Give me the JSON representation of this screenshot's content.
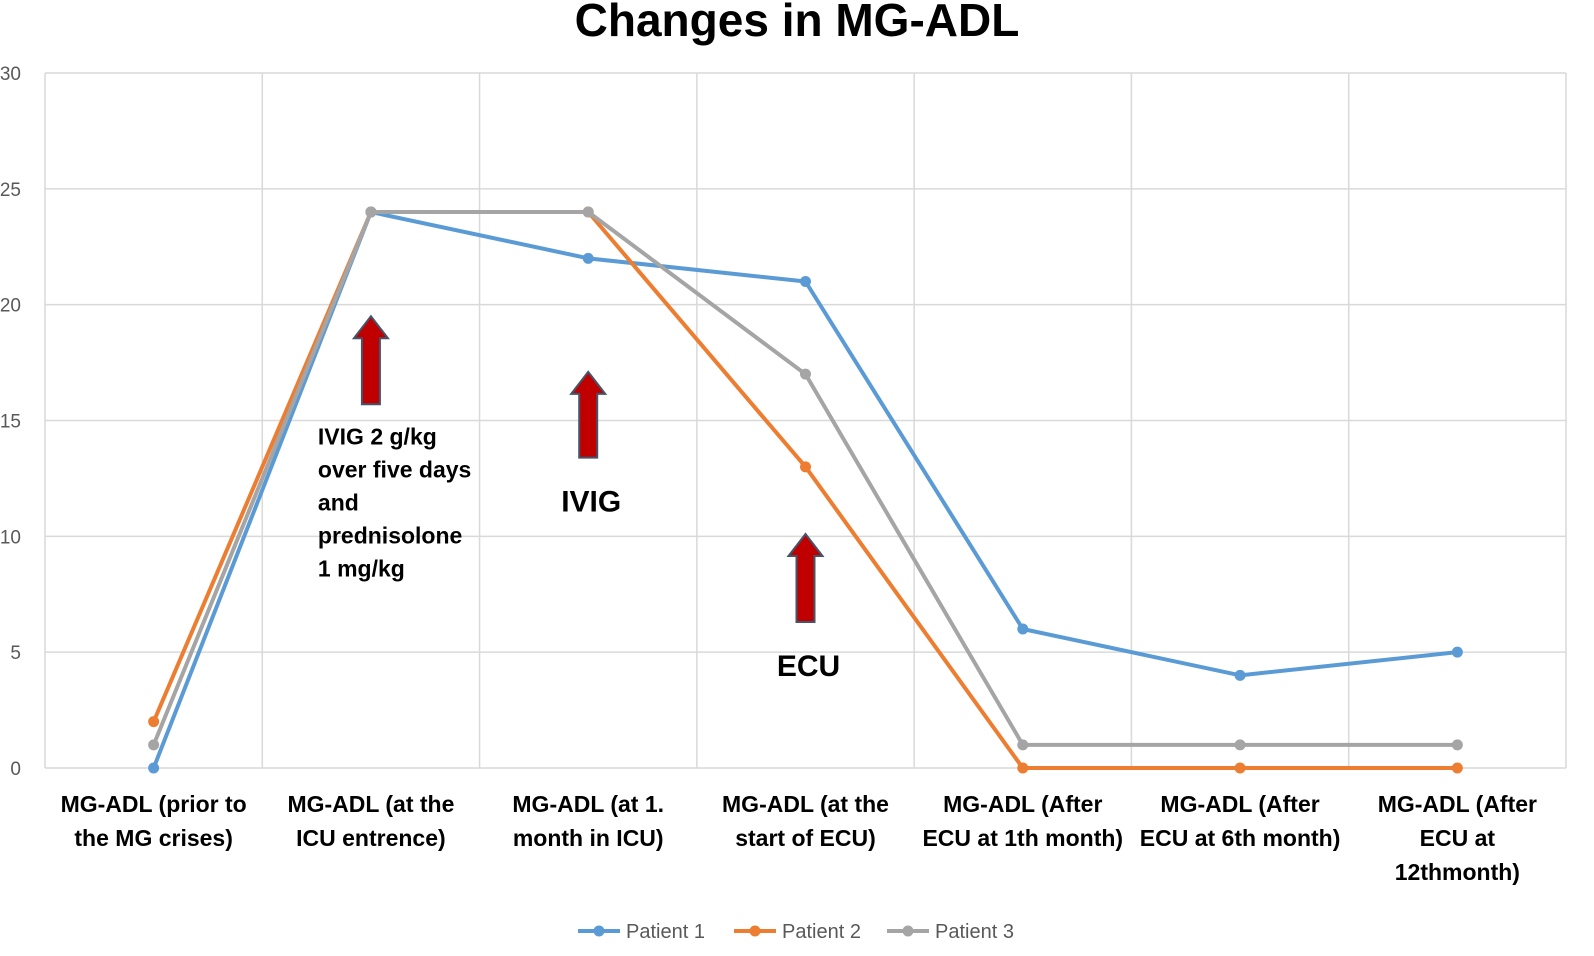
{
  "chart_data": {
    "type": "line",
    "title": "Changes in MG-ADL",
    "xlabel": "",
    "ylabel": "",
    "ylim": [
      0,
      30
    ],
    "yticks": [
      0,
      5,
      10,
      15,
      20,
      25,
      30
    ],
    "grid": true,
    "legend_position": "bottom",
    "categories": [
      [
        "MG-ADL (prior to",
        "the MG crises)"
      ],
      [
        "MG-ADL (at the",
        "ICU entrence)"
      ],
      [
        "MG-ADL (at 1.",
        "month in ICU)"
      ],
      [
        "MG-ADL (at the",
        "start of ECU)"
      ],
      [
        "MG-ADL (After",
        "ECU at 1th month)"
      ],
      [
        "MG-ADL (After",
        "ECU at 6th month)"
      ],
      [
        "MG-ADL (After",
        "ECU at",
        "12thmonth)"
      ]
    ],
    "series": [
      {
        "name": "Patient 1",
        "color": "#5B9BD5",
        "values": [
          0,
          24,
          22,
          21,
          6,
          4,
          5
        ]
      },
      {
        "name": "Patient 2",
        "color": "#ED7D31",
        "values": [
          2,
          24,
          24,
          13,
          0,
          0,
          0
        ]
      },
      {
        "name": "Patient 3",
        "color": "#A5A5A5",
        "values": [
          1,
          24,
          24,
          17,
          1,
          1,
          1
        ]
      }
    ],
    "annotations": [
      {
        "id": "ivig-prednisolone",
        "category_index": 1,
        "arrow_top": 19.5,
        "arrow_bottom": 15.7,
        "text_lines": [
          "IVIG 2 g/kg",
          "over five days",
          "and",
          "prednisolone",
          "1 mg/kg"
        ],
        "style": "small"
      },
      {
        "id": "ivig",
        "category_index": 2,
        "arrow_top": 17.1,
        "arrow_bottom": 13.4,
        "text_lines": [
          "IVIG"
        ],
        "style": "big"
      },
      {
        "id": "ecu",
        "category_index": 3,
        "arrow_top": 10.1,
        "arrow_bottom": 6.3,
        "text_lines": [
          "ECU"
        ],
        "style": "big"
      }
    ],
    "arrow_color": "#C00000",
    "arrow_outline": "#44546A"
  }
}
